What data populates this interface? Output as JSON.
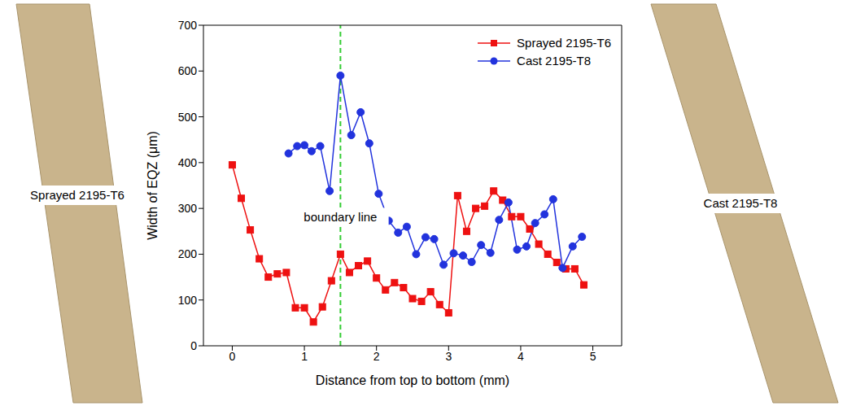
{
  "chart_data": {
    "type": "line",
    "xlabel": "Distance from top to bottom (mm)",
    "ylabel": "Width of EQZ (μm)",
    "xlim": [
      -0.4,
      5.4
    ],
    "ylim": [
      0,
      700
    ],
    "xticks": [
      0,
      1,
      2,
      3,
      4,
      5
    ],
    "yticks": [
      0,
      100,
      200,
      300,
      400,
      500,
      600,
      700
    ],
    "grid": false,
    "legend": "upper right",
    "series": [
      {
        "name": "Sprayed 2195-T6",
        "color": "#ee1111",
        "marker": "square",
        "line_style": "solid",
        "x": [
          0,
          0.125,
          0.25,
          0.375,
          0.5,
          0.625,
          0.75,
          0.875,
          1.0,
          1.125,
          1.25,
          1.375,
          1.5,
          1.625,
          1.75,
          1.875,
          2.0,
          2.125,
          2.25,
          2.375,
          2.5,
          2.625,
          2.75,
          2.875,
          3.0,
          3.125,
          3.25,
          3.375,
          3.5,
          3.625,
          3.75,
          3.875,
          4.0,
          4.125,
          4.25,
          4.375,
          4.5,
          4.625,
          4.75,
          4.875
        ],
        "values": [
          395,
          322,
          253,
          190,
          150,
          157,
          160,
          83,
          83,
          52,
          85,
          142,
          200,
          160,
          175,
          185,
          148,
          122,
          138,
          127,
          103,
          97,
          118,
          90,
          72,
          328,
          250,
          300,
          305,
          338,
          318,
          282,
          282,
          255,
          222,
          200,
          182,
          168,
          168,
          133
        ]
      },
      {
        "name": "Cast 2195-T8",
        "color": "#2233dd",
        "marker": "circle",
        "line_style": "solid",
        "x": [
          0.78,
          0.9,
          1.0,
          1.1,
          1.22,
          1.35,
          1.5,
          1.65,
          1.78,
          1.9,
          2.03,
          2.17,
          2.3,
          2.42,
          2.55,
          2.68,
          2.8,
          2.93,
          3.07,
          3.2,
          3.32,
          3.45,
          3.58,
          3.7,
          3.83,
          3.95,
          4.08,
          4.2,
          4.33,
          4.45,
          4.58,
          4.72,
          4.85
        ],
        "values": [
          420,
          436,
          438,
          425,
          436,
          338,
          590,
          460,
          510,
          442,
          332,
          273,
          247,
          260,
          200,
          237,
          233,
          177,
          202,
          197,
          183,
          220,
          203,
          275,
          313,
          210,
          217,
          268,
          287,
          320,
          170,
          217,
          238
        ]
      }
    ],
    "reference_lines": [
      {
        "x": 1.5,
        "color": "#33cc33",
        "line_style": "dashed"
      }
    ],
    "annotations": [
      {
        "text": "boundary line",
        "x": 1.5,
        "y": 280
      }
    ],
    "image_labels": [
      "Sprayed 2195-T6",
      "Cast 2195-T8"
    ]
  }
}
